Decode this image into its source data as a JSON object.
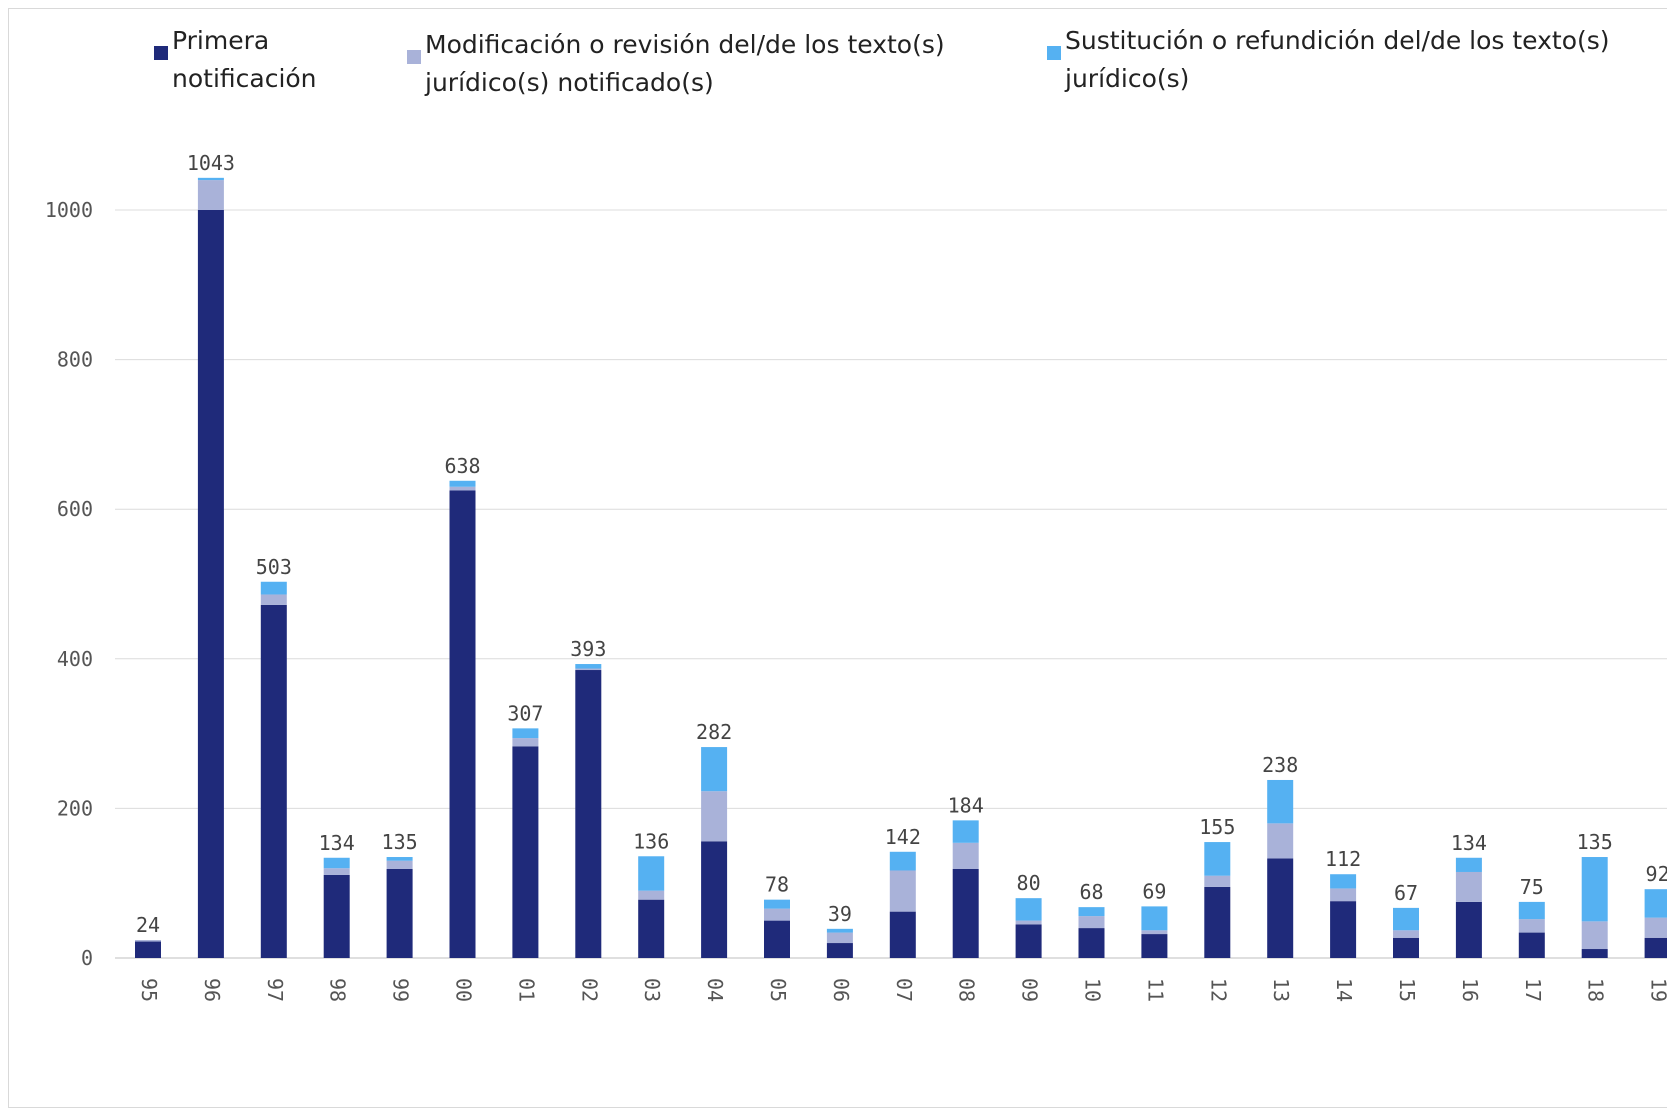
{
  "chart_data": {
    "type": "bar",
    "stacked": true,
    "title": "",
    "xlabel": "",
    "ylabel": "",
    "ylim": [
      0,
      1060
    ],
    "yticks": [
      0,
      200,
      400,
      600,
      800,
      1000
    ],
    "grid": true,
    "legend_position": "top",
    "categories": [
      "95",
      "96",
      "97",
      "98",
      "99",
      "00",
      "01",
      "02",
      "03",
      "04",
      "05",
      "06",
      "07",
      "08",
      "09",
      "10",
      "11",
      "12",
      "13",
      "14",
      "15",
      "16",
      "17",
      "18",
      "19"
    ],
    "series": [
      {
        "name": "Primera notificación",
        "color": "#1f2a7a",
        "values": [
          22,
          1000,
          472,
          111,
          119,
          625,
          283,
          385,
          78,
          156,
          50,
          20,
          62,
          119,
          45,
          40,
          32,
          95,
          133,
          76,
          27,
          75,
          34,
          12,
          27
        ]
      },
      {
        "name": "Modificación o revisión del/de los texto(s) jurídico(s) notificado(s)",
        "color": "#a9b2d9",
        "values": [
          2,
          40,
          14,
          9,
          11,
          5,
          11,
          2,
          12,
          67,
          16,
          14,
          55,
          35,
          5,
          16,
          5,
          15,
          47,
          17,
          10,
          40,
          18,
          37,
          27
        ]
      },
      {
        "name": "Sustitución o refundición del/de los texto(s) jurídico(s)",
        "color": "#55b1f2",
        "values": [
          0,
          3,
          17,
          14,
          5,
          8,
          13,
          6,
          46,
          59,
          12,
          5,
          25,
          30,
          30,
          12,
          32,
          45,
          58,
          19,
          30,
          19,
          23,
          86,
          38
        ]
      }
    ],
    "totals": [
      24,
      1043,
      503,
      134,
      135,
      638,
      307,
      393,
      136,
      282,
      78,
      39,
      142,
      184,
      80,
      68,
      69,
      155,
      238,
      112,
      67,
      134,
      75,
      135,
      92
    ]
  }
}
